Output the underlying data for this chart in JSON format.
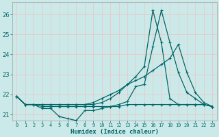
{
  "xlabel": "Humidex (Indice chaleur)",
  "background_color": "#cce9e9",
  "grid_color": "#ddeeee",
  "line_color": "#006666",
  "xlim": [
    -0.5,
    23.5
  ],
  "ylim": [
    20.7,
    26.6
  ],
  "yticks": [
    21,
    22,
    23,
    24,
    25,
    26
  ],
  "x": [
    0,
    1,
    2,
    3,
    4,
    5,
    6,
    7,
    8,
    9,
    10,
    11,
    12,
    13,
    14,
    15,
    16,
    17,
    18,
    19,
    20,
    21,
    22,
    23
  ],
  "line_spiky": [
    21.9,
    21.5,
    21.5,
    21.3,
    21.3,
    20.9,
    20.8,
    20.7,
    21.2,
    21.2,
    21.3,
    21.4,
    21.5,
    21.65,
    22.4,
    22.5,
    24.4,
    26.2,
    24.6,
    23.1,
    22.1,
    21.8,
    21.5,
    21.4
  ],
  "line_triangle": [
    21.9,
    21.5,
    21.5,
    21.5,
    21.5,
    21.5,
    21.5,
    21.5,
    21.5,
    21.5,
    21.6,
    21.8,
    22.1,
    22.5,
    22.9,
    23.4,
    26.2,
    24.6,
    21.8,
    21.5,
    21.5,
    21.5,
    21.5,
    21.4
  ],
  "line_gradual": [
    21.9,
    21.5,
    21.5,
    21.5,
    21.5,
    21.5,
    21.5,
    21.5,
    21.5,
    21.6,
    21.8,
    22.0,
    22.2,
    22.5,
    22.7,
    22.9,
    23.2,
    23.5,
    23.8,
    24.5,
    23.1,
    22.1,
    21.6,
    21.4
  ],
  "line_flat": [
    21.9,
    21.5,
    21.5,
    21.4,
    21.4,
    21.4,
    21.4,
    21.4,
    21.4,
    21.4,
    21.4,
    21.4,
    21.4,
    21.5,
    21.5,
    21.5,
    21.5,
    21.5,
    21.5,
    21.5,
    21.5,
    21.5,
    21.5,
    21.4
  ]
}
